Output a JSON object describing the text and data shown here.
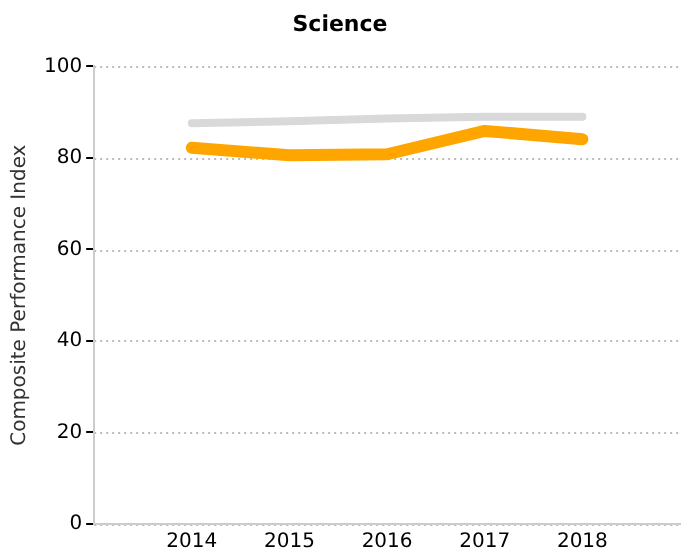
{
  "chart_data": {
    "type": "line",
    "title": "Science",
    "ylabel": "Composite Performance Index",
    "x": [
      2014,
      2015,
      2016,
      2017,
      2018
    ],
    "xlim": [
      2013,
      2019
    ],
    "xticks": [
      2014,
      2015,
      2016,
      2017,
      2018
    ],
    "ylim": [
      0,
      100
    ],
    "yticks": [
      0,
      20,
      40,
      60,
      80,
      100
    ],
    "grid": "y",
    "legend": false,
    "series": [
      {
        "color": "#d9d9d9",
        "values": [
          87.6,
          88.0,
          88.6,
          89.0,
          89.0
        ]
      },
      {
        "color": "#ffa500",
        "values": [
          82.2,
          80.6,
          80.8,
          85.9,
          84.1
        ]
      }
    ]
  }
}
